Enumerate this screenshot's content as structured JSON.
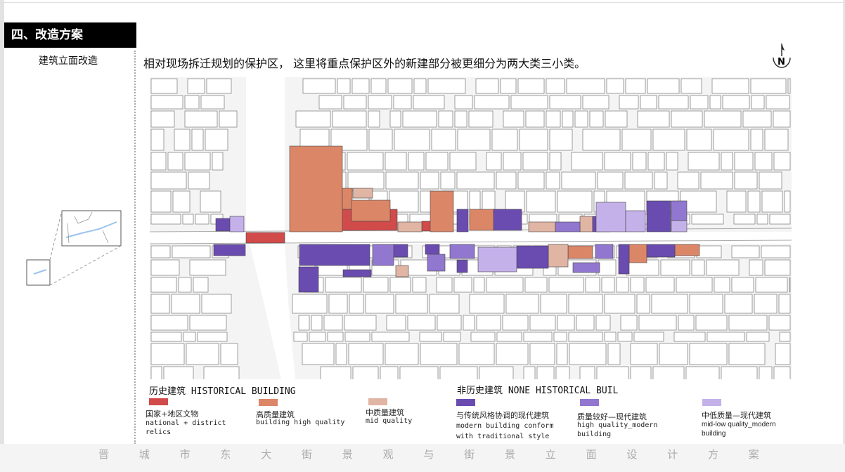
{
  "section": {
    "title": "四、改造方案",
    "subtitle": "建筑立面改造"
  },
  "headline": "相对现场拆迁规划的保护区， 这里将重点保护区外的新建部分被更细分为两大类三小类。",
  "compass": {
    "label": "N"
  },
  "colors": {
    "national": "#d14b4b",
    "high": "#dc8668",
    "mid": "#e1b5a4",
    "modern_conform": "#6a4cb0",
    "modern_high": "#9177cf",
    "modern_low": "#c4b1ea"
  },
  "legend": {
    "historical": {
      "title": "历史建筑 HISTORICAL BUILDING",
      "items": [
        {
          "zh": "国家+地区文物",
          "en": "national +  district relics",
          "color": "#d14b4b"
        },
        {
          "zh": "高质量建筑",
          "en": "building high quality",
          "color": "#dc8668"
        },
        {
          "zh": "中质量建筑",
          "en": "mid quality",
          "color": "#e1b5a4"
        }
      ]
    },
    "non_historical": {
      "title": "非历史建筑 NONE HISTORICAL BUIL",
      "items": [
        {
          "zh": "与传统风格协调的现代建筑",
          "en": "modern building conform with traditional style",
          "color": "#6a4cb0"
        },
        {
          "zh": "质量较好—现代建筑",
          "en": "high quality_modern building",
          "color": "#9177cf"
        },
        {
          "zh": "中低质量—现代建筑",
          "en": "mid-low quality_modern building",
          "color": "#c4b1ea"
        }
      ]
    }
  },
  "footer": [
    "晋",
    "城",
    "市",
    "东",
    "大",
    "街",
    "景",
    "观",
    "与",
    "街",
    "景",
    "立",
    "面",
    "设",
    "计",
    "方",
    "案"
  ]
}
